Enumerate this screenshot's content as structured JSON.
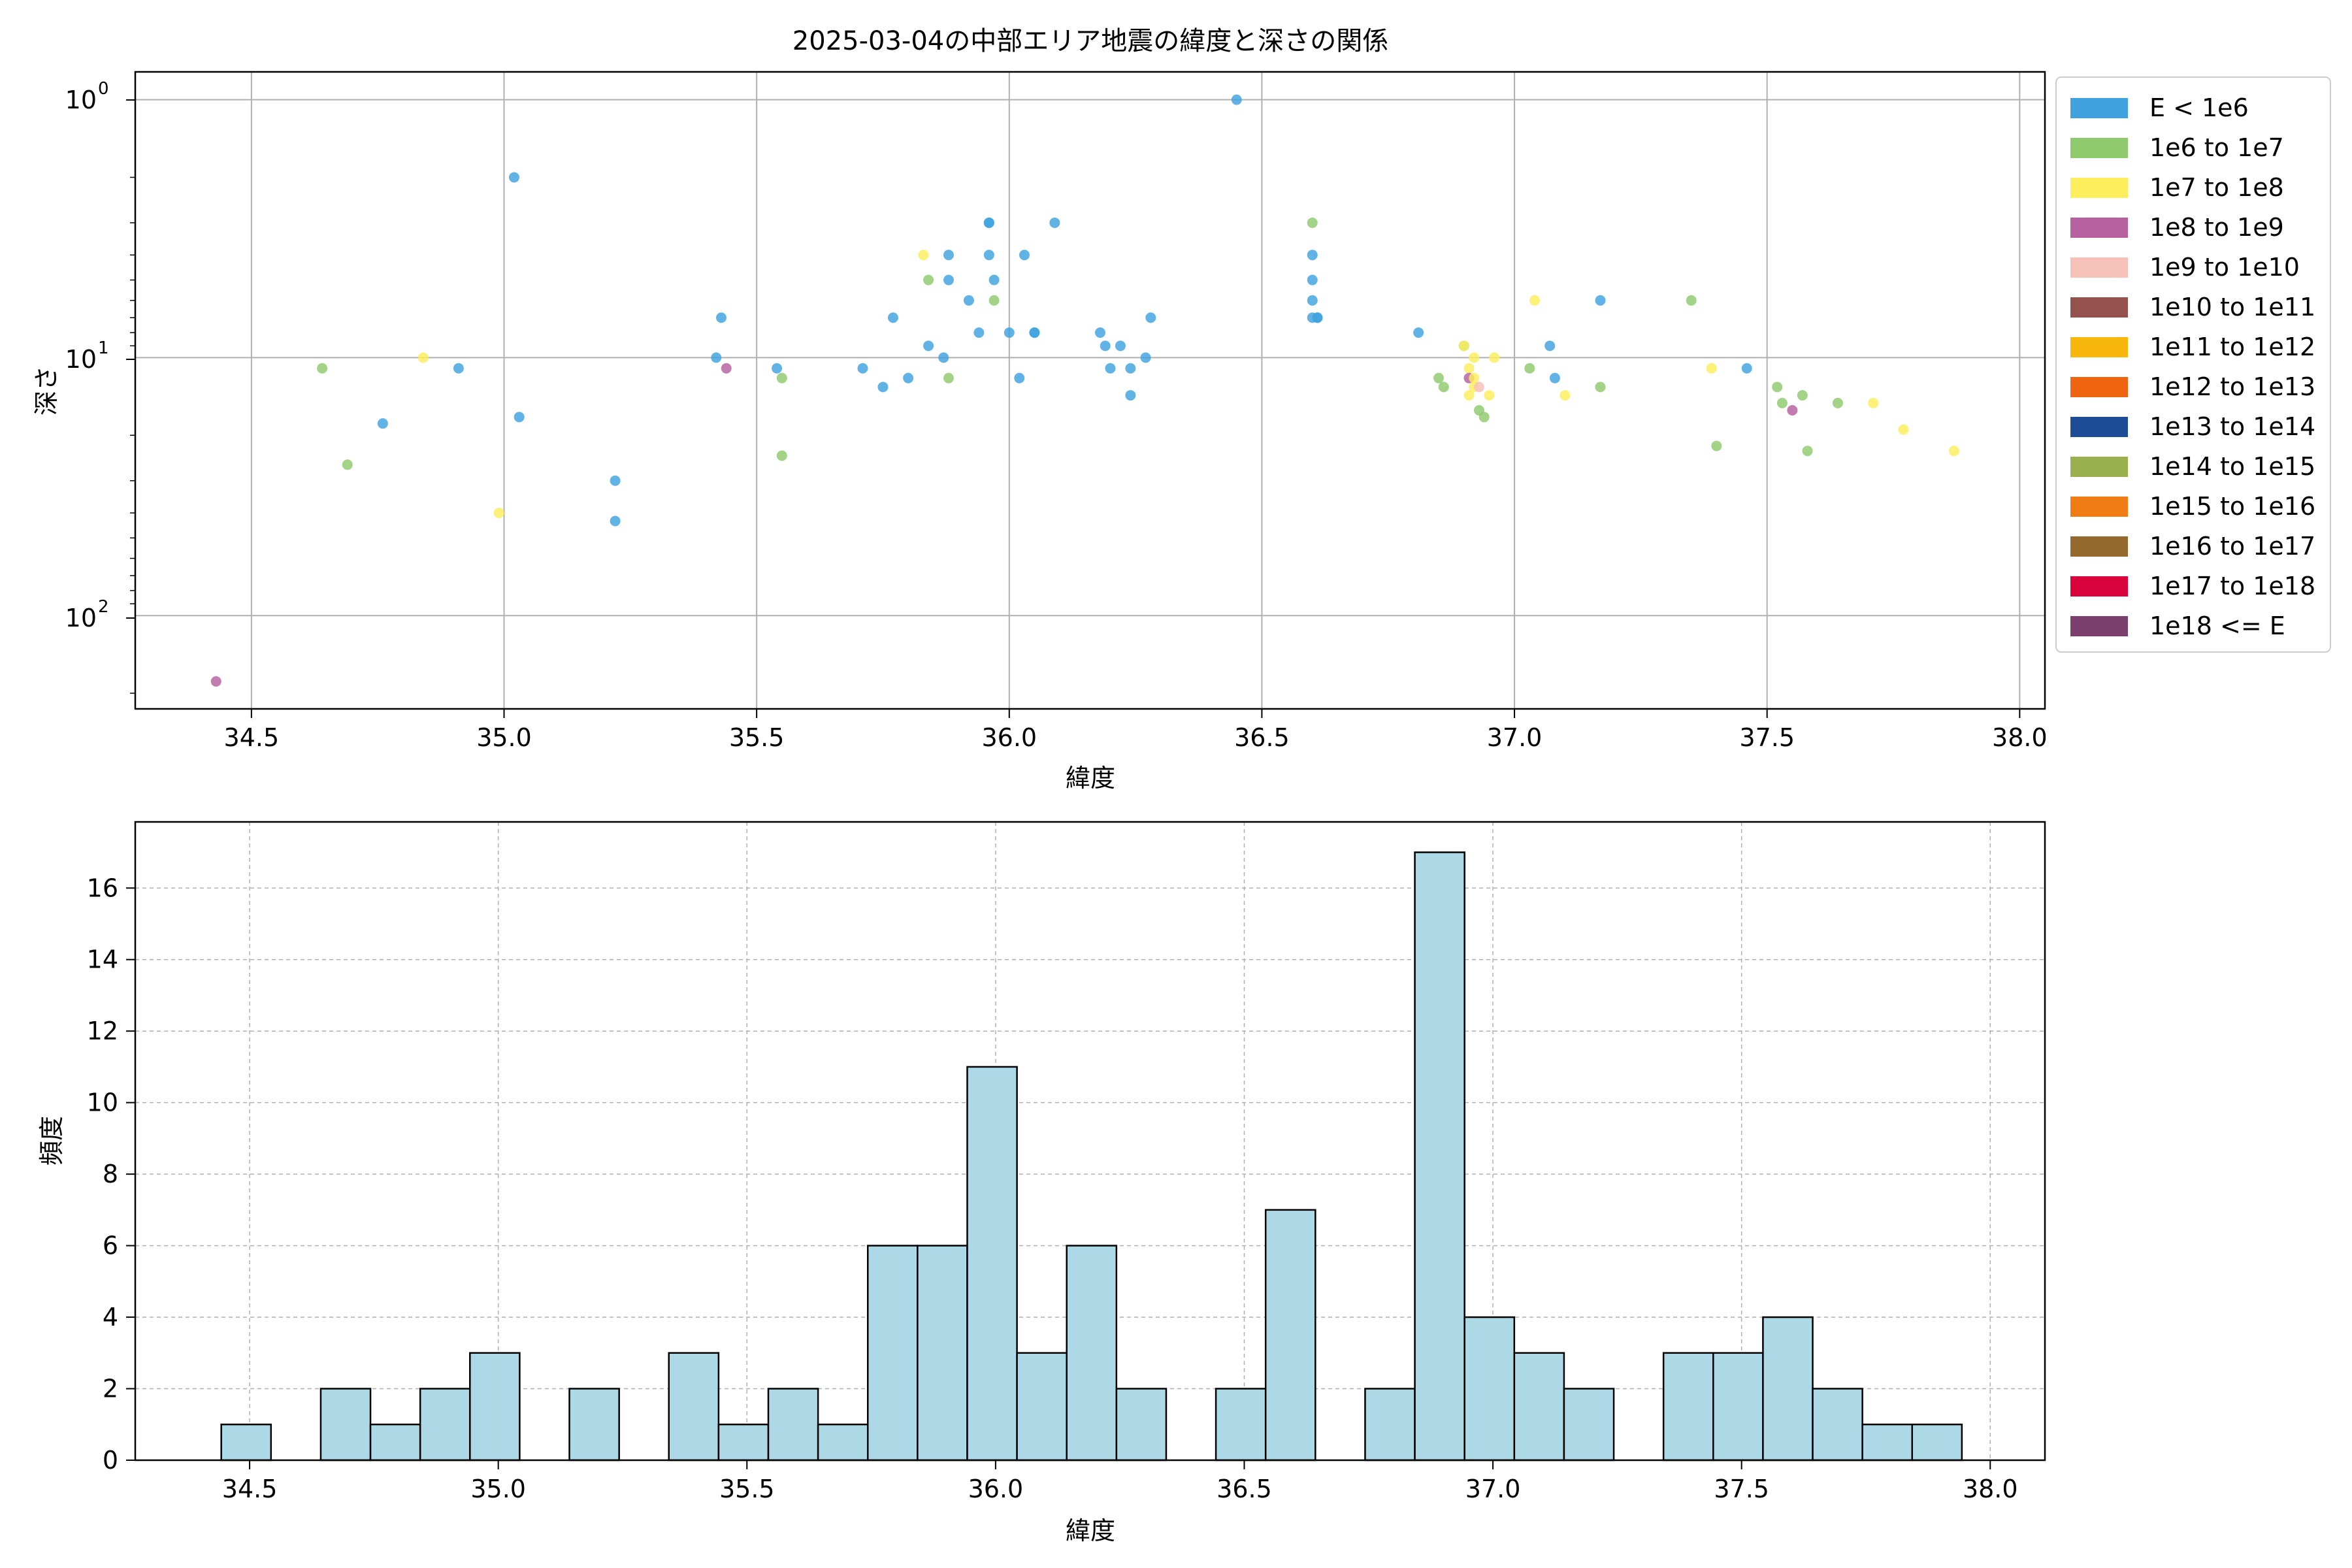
{
  "title": "2025-03-04の中部エリア地震の緯度と深さの関係",
  "colors": {
    "bar_fill": "#add8e6",
    "bar_edge": "#000000",
    "grid": "#b0b0b0"
  },
  "chart_data": [
    {
      "type": "scatter",
      "title": "2025-03-04の中部エリア地震の緯度と深さの関係",
      "xlabel": "緯度",
      "ylabel": "深さ",
      "xlim": [
        34.27,
        38.05
      ],
      "ylim": [
        230,
        0.78
      ],
      "yscale": "log",
      "y_inverted": true,
      "xticks": [
        34.5,
        35.0,
        35.5,
        36.0,
        36.5,
        37.0,
        37.5,
        38.0
      ],
      "xtick_labels": [
        "34.5",
        "35.0",
        "35.5",
        "36.0",
        "36.5",
        "37.0",
        "37.5",
        "38.0"
      ],
      "ytick_labels": [
        {
          "base": "10",
          "exp": "0",
          "value": 1
        },
        {
          "base": "10",
          "exp": "1",
          "value": 10
        },
        {
          "base": "10",
          "exp": "2",
          "value": 100
        }
      ],
      "grid": true,
      "legend_position": "outside-right",
      "legend": [
        {
          "label": "E < 1e6",
          "color": "#3fa2df"
        },
        {
          "label": "1e6 to 1e7",
          "color": "#8ec96b"
        },
        {
          "label": "1e7 to 1e8",
          "color": "#fdee5d"
        },
        {
          "label": "1e8 to 1e9",
          "color": "#b5609f"
        },
        {
          "label": "1e9 to 1e10",
          "color": "#f6c1b9"
        },
        {
          "label": "1e10 to 1e11",
          "color": "#95514d"
        },
        {
          "label": "1e11 to 1e12",
          "color": "#f8b70c"
        },
        {
          "label": "1e12 to 1e13",
          "color": "#ee6411"
        },
        {
          "label": "1e13 to 1e14",
          "color": "#1d4c96"
        },
        {
          "label": "1e14 to 1e15",
          "color": "#9aaf4e"
        },
        {
          "label": "1e15 to 1e16",
          "color": "#ef7d13"
        },
        {
          "label": "1e16 to 1e17",
          "color": "#94692d"
        },
        {
          "label": "1e17 to 1e18",
          "color": "#d9043c"
        },
        {
          "label": "1e18 <= E",
          "color": "#7b3f6d"
        }
      ],
      "points": [
        {
          "x": 34.43,
          "y": 180,
          "c": 3
        },
        {
          "x": 34.64,
          "y": 11,
          "c": 1
        },
        {
          "x": 34.69,
          "y": 26,
          "c": 1
        },
        {
          "x": 34.76,
          "y": 18,
          "c": 0
        },
        {
          "x": 34.84,
          "y": 10,
          "c": 2
        },
        {
          "x": 34.91,
          "y": 11,
          "c": 0
        },
        {
          "x": 34.99,
          "y": 40,
          "c": 2
        },
        {
          "x": 35.02,
          "y": 2,
          "c": 0
        },
        {
          "x": 35.03,
          "y": 17,
          "c": 0
        },
        {
          "x": 35.22,
          "y": 43,
          "c": 0
        },
        {
          "x": 35.22,
          "y": 30,
          "c": 0
        },
        {
          "x": 35.42,
          "y": 10,
          "c": 0
        },
        {
          "x": 35.43,
          "y": 7,
          "c": 0
        },
        {
          "x": 35.44,
          "y": 11,
          "c": 3
        },
        {
          "x": 35.54,
          "y": 11,
          "c": 0
        },
        {
          "x": 35.55,
          "y": 12,
          "c": 1
        },
        {
          "x": 35.55,
          "y": 24,
          "c": 1
        },
        {
          "x": 35.71,
          "y": 11,
          "c": 0
        },
        {
          "x": 35.75,
          "y": 13,
          "c": 0
        },
        {
          "x": 35.77,
          "y": 7,
          "c": 0
        },
        {
          "x": 35.8,
          "y": 12,
          "c": 0
        },
        {
          "x": 35.83,
          "y": 4,
          "c": 2
        },
        {
          "x": 35.84,
          "y": 5,
          "c": 1
        },
        {
          "x": 35.84,
          "y": 9,
          "c": 0
        },
        {
          "x": 35.87,
          "y": 10,
          "c": 0
        },
        {
          "x": 35.88,
          "y": 4,
          "c": 0
        },
        {
          "x": 35.88,
          "y": 5,
          "c": 0
        },
        {
          "x": 35.88,
          "y": 12,
          "c": 1
        },
        {
          "x": 35.92,
          "y": 6,
          "c": 0
        },
        {
          "x": 35.94,
          "y": 8,
          "c": 0
        },
        {
          "x": 35.96,
          "y": 3,
          "c": 0
        },
        {
          "x": 35.96,
          "y": 3,
          "c": 0
        },
        {
          "x": 35.96,
          "y": 4,
          "c": 0
        },
        {
          "x": 35.97,
          "y": 5,
          "c": 0
        },
        {
          "x": 35.97,
          "y": 6,
          "c": 1
        },
        {
          "x": 36.0,
          "y": 8,
          "c": 0
        },
        {
          "x": 36.02,
          "y": 12,
          "c": 0
        },
        {
          "x": 36.03,
          "y": 4,
          "c": 0
        },
        {
          "x": 36.05,
          "y": 8,
          "c": 0
        },
        {
          "x": 36.05,
          "y": 8,
          "c": 0
        },
        {
          "x": 36.09,
          "y": 3,
          "c": 0
        },
        {
          "x": 36.18,
          "y": 8,
          "c": 0
        },
        {
          "x": 36.19,
          "y": 9,
          "c": 0
        },
        {
          "x": 36.2,
          "y": 11,
          "c": 0
        },
        {
          "x": 36.22,
          "y": 9,
          "c": 0
        },
        {
          "x": 36.24,
          "y": 14,
          "c": 0
        },
        {
          "x": 36.24,
          "y": 11,
          "c": 0
        },
        {
          "x": 36.27,
          "y": 10,
          "c": 0
        },
        {
          "x": 36.28,
          "y": 7,
          "c": 0
        },
        {
          "x": 36.45,
          "y": 1,
          "c": 0
        },
        {
          "x": 36.6,
          "y": 3,
          "c": 1
        },
        {
          "x": 36.6,
          "y": 4,
          "c": 0
        },
        {
          "x": 36.6,
          "y": 5,
          "c": 0
        },
        {
          "x": 36.6,
          "y": 6,
          "c": 0
        },
        {
          "x": 36.6,
          "y": 7,
          "c": 0
        },
        {
          "x": 36.61,
          "y": 7,
          "c": 0
        },
        {
          "x": 36.61,
          "y": 7,
          "c": 0
        },
        {
          "x": 36.81,
          "y": 8,
          "c": 0
        },
        {
          "x": 36.85,
          "y": 12,
          "c": 1
        },
        {
          "x": 36.86,
          "y": 13,
          "c": 1
        },
        {
          "x": 36.9,
          "y": 9,
          "c": 1
        },
        {
          "x": 36.9,
          "y": 9,
          "c": 2
        },
        {
          "x": 36.91,
          "y": 11,
          "c": 2
        },
        {
          "x": 36.91,
          "y": 12,
          "c": 3
        },
        {
          "x": 36.91,
          "y": 14,
          "c": 2
        },
        {
          "x": 36.92,
          "y": 12,
          "c": 2
        },
        {
          "x": 36.92,
          "y": 13,
          "c": 2
        },
        {
          "x": 36.92,
          "y": 10,
          "c": 2
        },
        {
          "x": 36.93,
          "y": 13,
          "c": 4
        },
        {
          "x": 36.93,
          "y": 16,
          "c": 1
        },
        {
          "x": 36.94,
          "y": 17,
          "c": 1
        },
        {
          "x": 36.95,
          "y": 14,
          "c": 2
        },
        {
          "x": 36.96,
          "y": 10,
          "c": 2
        },
        {
          "x": 37.03,
          "y": 11,
          "c": 1
        },
        {
          "x": 37.04,
          "y": 6,
          "c": 2
        },
        {
          "x": 37.07,
          "y": 9,
          "c": 0
        },
        {
          "x": 37.08,
          "y": 12,
          "c": 0
        },
        {
          "x": 37.1,
          "y": 14,
          "c": 2
        },
        {
          "x": 37.17,
          "y": 6,
          "c": 0
        },
        {
          "x": 37.17,
          "y": 13,
          "c": 1
        },
        {
          "x": 37.35,
          "y": 6,
          "c": 1
        },
        {
          "x": 37.39,
          "y": 11,
          "c": 2
        },
        {
          "x": 37.4,
          "y": 22,
          "c": 1
        },
        {
          "x": 37.46,
          "y": 11,
          "c": 0
        },
        {
          "x": 37.52,
          "y": 13,
          "c": 1
        },
        {
          "x": 37.53,
          "y": 15,
          "c": 1
        },
        {
          "x": 37.55,
          "y": 16,
          "c": 3
        },
        {
          "x": 37.57,
          "y": 14,
          "c": 1
        },
        {
          "x": 37.58,
          "y": 23,
          "c": 1
        },
        {
          "x": 37.64,
          "y": 15,
          "c": 1
        },
        {
          "x": 37.71,
          "y": 15,
          "c": 2
        },
        {
          "x": 37.77,
          "y": 19,
          "c": 2
        },
        {
          "x": 37.87,
          "y": 23,
          "c": 2
        }
      ]
    },
    {
      "type": "bar",
      "subtype": "histogram",
      "xlabel": "緯度",
      "ylabel": "頻度",
      "xlim": [
        34.27,
        38.11
      ],
      "ylim": [
        0,
        17.85
      ],
      "xticks": [
        34.5,
        35.0,
        35.5,
        36.0,
        36.5,
        37.0,
        37.5,
        38.0
      ],
      "xtick_labels": [
        "34.5",
        "35.0",
        "35.5",
        "36.0",
        "36.5",
        "37.0",
        "37.5",
        "38.0"
      ],
      "yticks": [
        0,
        2,
        4,
        6,
        8,
        10,
        12,
        14,
        16
      ],
      "ytick_labels": [
        "0",
        "2",
        "4",
        "6",
        "8",
        "10",
        "12",
        "14",
        "16"
      ],
      "grid": true,
      "bin_start": 34.443,
      "bin_width": 0.1,
      "values": [
        1,
        0,
        2,
        1,
        2,
        3,
        0,
        2,
        0,
        3,
        1,
        2,
        1,
        6,
        6,
        11,
        3,
        6,
        2,
        0,
        2,
        7,
        0,
        2,
        17,
        4,
        3,
        2,
        0,
        3,
        3,
        4,
        2,
        1,
        1
      ]
    }
  ]
}
